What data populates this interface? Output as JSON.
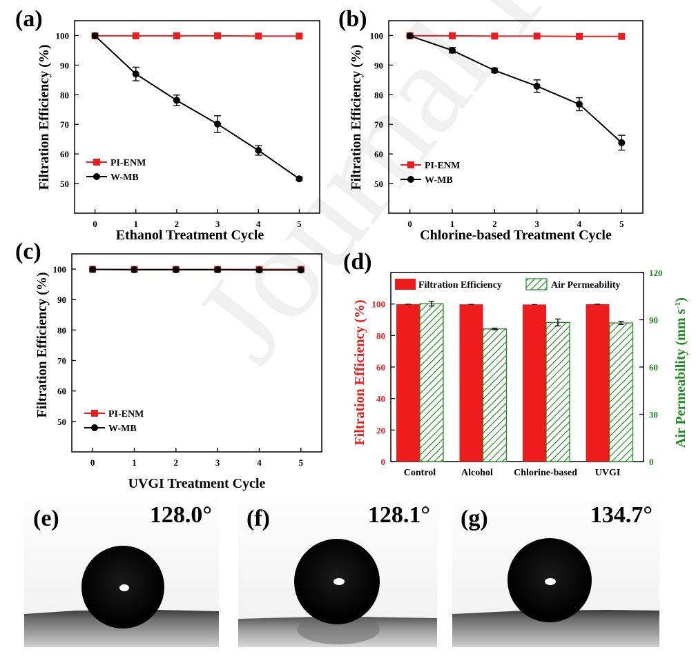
{
  "watermark": "Journal Pre-proof",
  "colors": {
    "red": "#ee1c1c",
    "black": "#000000",
    "green": "#1f8a1f"
  },
  "chart_data": [
    {
      "panel": "(a)",
      "type": "line",
      "xlabel": "Ethanol Treatment Cycle",
      "ylabel": "Filtration Efficiency (%)",
      "x": [
        0,
        1,
        2,
        3,
        4,
        5
      ],
      "xlim": [
        -0.5,
        5.5
      ],
      "ylim": [
        40,
        105
      ],
      "yticks": [
        50,
        60,
        70,
        80,
        90,
        100
      ],
      "legend_position": "lower-left",
      "series": [
        {
          "name": "PI-ENM",
          "color": "#ee1c1c",
          "marker": "square",
          "values": [
            99.9,
            99.9,
            99.9,
            99.9,
            99.8,
            99.8
          ],
          "errors": [
            0,
            0,
            0,
            0,
            0,
            0
          ]
        },
        {
          "name": "W-MB",
          "color": "#000000",
          "marker": "circle",
          "values": [
            99.9,
            87.0,
            78.1,
            70.1,
            61.2,
            51.6
          ],
          "errors": [
            0,
            2.3,
            1.8,
            2.8,
            1.6,
            0.6
          ]
        }
      ]
    },
    {
      "panel": "(b)",
      "type": "line",
      "xlabel": "Chlorine-based Treatment Cycle",
      "ylabel": "Filtration Efficiency (%)",
      "x": [
        0,
        1,
        2,
        3,
        4,
        5
      ],
      "xlim": [
        -0.5,
        5.5
      ],
      "ylim": [
        40,
        105
      ],
      "yticks": [
        50,
        60,
        70,
        80,
        90,
        100
      ],
      "legend_position": "lower-left",
      "series": [
        {
          "name": "PI-ENM",
          "color": "#ee1c1c",
          "marker": "square",
          "values": [
            99.9,
            99.9,
            99.8,
            99.8,
            99.7,
            99.7
          ],
          "errors": [
            0,
            0,
            0,
            0,
            0,
            0
          ]
        },
        {
          "name": "W-MB",
          "color": "#000000",
          "marker": "circle",
          "values": [
            99.9,
            95.0,
            88.2,
            82.9,
            76.8,
            63.8
          ],
          "errors": [
            0,
            0.9,
            0.8,
            2.1,
            2.2,
            2.5
          ]
        }
      ]
    },
    {
      "panel": "(c)",
      "type": "line",
      "xlabel": "UVGI Treatment Cycle",
      "ylabel": "Filtration Efficiency (%)",
      "x": [
        0,
        1,
        2,
        3,
        4,
        5
      ],
      "xlim": [
        -0.5,
        5.5
      ],
      "ylim": [
        40,
        105
      ],
      "yticks": [
        50,
        60,
        70,
        80,
        90,
        100
      ],
      "legend_position": "lower-left",
      "series": [
        {
          "name": "PI-ENM",
          "color": "#ee1c1c",
          "marker": "square",
          "values": [
            99.9,
            99.9,
            99.9,
            99.9,
            99.9,
            99.9
          ],
          "errors": [
            0,
            0,
            0,
            0,
            0,
            0
          ]
        },
        {
          "name": "W-MB",
          "color": "#000000",
          "marker": "circle",
          "values": [
            99.9,
            99.8,
            99.8,
            99.8,
            99.7,
            99.7
          ],
          "errors": [
            0,
            0,
            0,
            0,
            0,
            0
          ]
        }
      ]
    },
    {
      "panel": "(d)",
      "type": "bar",
      "categories": [
        "Control",
        "Alcohol",
        "Chlorine-based",
        "UVGI"
      ],
      "ylabel": "Filtration Efficiency (%)",
      "ylim": [
        0,
        120
      ],
      "yticks": [
        0,
        20,
        40,
        60,
        80,
        100
      ],
      "y2label": "Air Permeability (mm s-1)",
      "y2lim": [
        0,
        120
      ],
      "y2ticks": [
        0,
        30,
        60,
        90,
        120
      ],
      "legend_position": "top",
      "series": [
        {
          "name": "Filtration Efficiency",
          "axis": "left",
          "color": "#ee1c1c",
          "pattern": "solid",
          "values": [
            99.9,
            99.8,
            99.7,
            99.9
          ],
          "errors": [
            0,
            0,
            0,
            0
          ]
        },
        {
          "name": "Air Permeability",
          "axis": "right",
          "color": "#1f8a1f",
          "pattern": "hatched",
          "values": [
            100.2,
            84.2,
            88.3,
            88.0
          ],
          "errors": [
            1.5,
            0.5,
            2.2,
            1.0
          ]
        }
      ]
    }
  ],
  "photos": [
    {
      "panel": "(e)",
      "angle": "128.0°",
      "style": "surface"
    },
    {
      "panel": "(f)",
      "angle": "128.1°",
      "style": "reflect"
    },
    {
      "panel": "(g)",
      "angle": "134.7°",
      "style": "surface"
    }
  ]
}
